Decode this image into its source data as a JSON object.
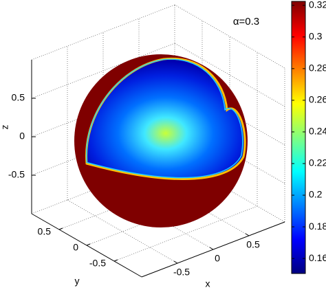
{
  "chart_data": {
    "type": "surface3d",
    "annotation": "α=0.3",
    "xlabel": "x",
    "ylabel": "y",
    "zlabel": "z",
    "xlim": [
      -1,
      1
    ],
    "ylim": [
      -1,
      1
    ],
    "zlim": [
      -1,
      1
    ],
    "xticks": [
      -0.5,
      0,
      0.5
    ],
    "yticks": [
      -0.5,
      0,
      0.5
    ],
    "zticks": [
      -0.5,
      0,
      0.5
    ],
    "grid": true,
    "colorbar": {
      "clim": [
        0.1505,
        0.3225
      ],
      "ticks": [
        0.16,
        0.18,
        0.2,
        0.22,
        0.24,
        0.26,
        0.28,
        0.3,
        0.32
      ],
      "colormap": "jet"
    }
  }
}
